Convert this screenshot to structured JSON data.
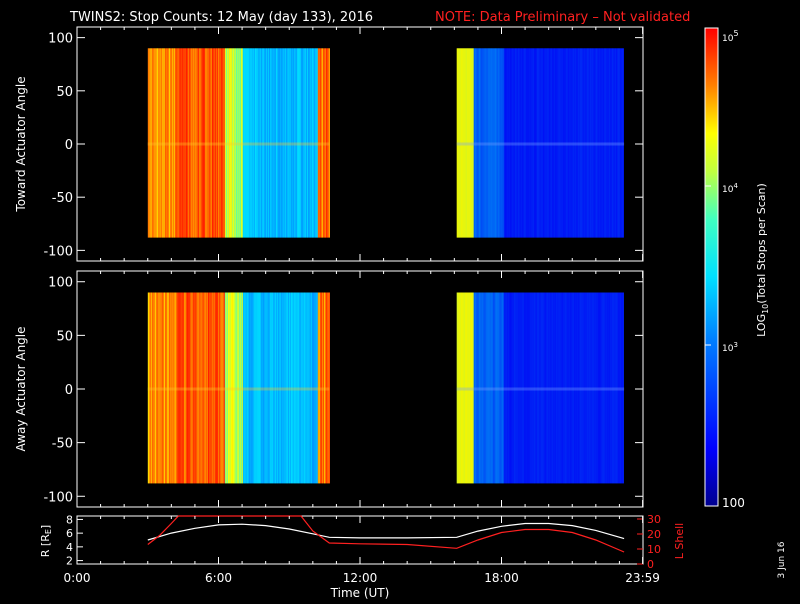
{
  "title": {
    "main": "TWINS2: Stop Counts: 12 May (day 133), 2016",
    "note": "NOTE: Data Preliminary – Not validated"
  },
  "colors": {
    "background": "#000000",
    "axes": "#ffffff",
    "note": "#ff2020",
    "lshell": "#ff2020",
    "radius": "#ffffff"
  },
  "footer_date": "3 Jun 16",
  "chart_data": [
    {
      "type": "heatmap",
      "name": "toward-panel",
      "ylabel": "Toward Actuator Angle",
      "ylim": [
        -110,
        110
      ],
      "yticks": [
        100,
        50,
        0,
        -50,
        -100
      ],
      "xlim_hours": [
        0,
        24
      ],
      "data_blocks": [
        {
          "t_start": 3.0,
          "t_end": 10.7,
          "angle_range": [
            -88,
            90
          ]
        },
        {
          "t_start": 16.1,
          "t_end": 23.2,
          "angle_range": [
            -88,
            90
          ]
        }
      ]
    },
    {
      "type": "heatmap",
      "name": "away-panel",
      "ylabel": "Away Actuator Angle",
      "ylim": [
        -110,
        110
      ],
      "yticks": [
        100,
        50,
        0,
        -50,
        -100
      ],
      "xlim_hours": [
        0,
        24
      ],
      "data_blocks": [
        {
          "t_start": 3.0,
          "t_end": 10.7,
          "angle_range": [
            -88,
            90
          ]
        },
        {
          "t_start": 16.1,
          "t_end": 23.2,
          "angle_range": [
            -88,
            90
          ]
        }
      ]
    },
    {
      "type": "line",
      "name": "ephemeris-panel",
      "ylabel_left": "R [R",
      "ylabel_left_sub": "E",
      "ylabel_left_end": "]",
      "ylim_left": [
        1.5,
        8.5
      ],
      "yticks_left": [
        "8",
        "6",
        "4",
        "2"
      ],
      "ylabel_right": "L Shell",
      "ylim_right": [
        0,
        32
      ],
      "yticks_right": [
        "30",
        "20",
        "10",
        "0"
      ],
      "series": [
        {
          "name": "R",
          "axis": "left",
          "x": [
            3.0,
            4.0,
            5.0,
            6.0,
            7.0,
            8.0,
            9.0,
            10.0,
            10.7,
            12.0,
            14.0,
            16.1,
            17.0,
            18.0,
            19.0,
            20.0,
            21.0,
            22.0,
            23.2
          ],
          "y": [
            5.0,
            6.0,
            6.7,
            7.2,
            7.3,
            7.1,
            6.6,
            5.9,
            5.4,
            5.3,
            5.3,
            5.4,
            6.3,
            7.0,
            7.4,
            7.4,
            7.1,
            6.4,
            5.2
          ]
        },
        {
          "name": "L Shell",
          "axis": "right",
          "x": [
            3.0,
            3.5,
            4.0,
            4.3,
            9.5,
            10.0,
            10.7,
            12.0,
            14.0,
            16.1,
            17.0,
            18.0,
            19.0,
            20.0,
            21.0,
            22.0,
            23.2
          ],
          "y": [
            13,
            19,
            27,
            32,
            32,
            22,
            14,
            13.5,
            13,
            10.5,
            16,
            21,
            23,
            23,
            21,
            16,
            8
          ]
        }
      ]
    }
  ],
  "x_axis": {
    "ticks": [
      "0:00",
      "6:00",
      "12:00",
      "18:00",
      "23:59"
    ],
    "tick_hours": [
      0,
      6,
      12,
      18,
      23.983
    ],
    "label": "Time (UT)"
  },
  "colorbar": {
    "label_parts": [
      "LOG",
      "10",
      "(Total Stops per Scan)"
    ],
    "tick_100": "100",
    "tick_10": "10",
    "exp3": "3",
    "exp4": "4",
    "exp5": "5",
    "range": [
      2,
      5
    ]
  }
}
